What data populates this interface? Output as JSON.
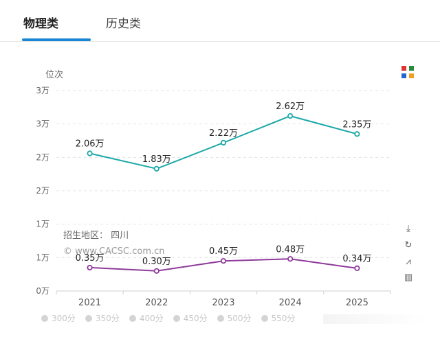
{
  "tabs": [
    {
      "label": "物理类",
      "active": true
    },
    {
      "label": "历史类",
      "active": false
    }
  ],
  "watermark": {
    "region_label": "招生地区：  四川",
    "site": "© www.CACSC.com.cn"
  },
  "legend": [
    "300分",
    "350分",
    "400分",
    "450分",
    "500分",
    "550分"
  ],
  "chart_data": {
    "type": "line",
    "ylabel": "位次",
    "categories": [
      "2021",
      "2022",
      "2023",
      "2024",
      "2025"
    ],
    "y_ticks": [
      {
        "value": 0,
        "label": "0万"
      },
      {
        "value": 5000,
        "label": "1万"
      },
      {
        "value": 10000,
        "label": "1万"
      },
      {
        "value": 15000,
        "label": "2万"
      },
      {
        "value": 20000,
        "label": "2万"
      },
      {
        "value": 25000,
        "label": "3万"
      },
      {
        "value": 30000,
        "label": "3万"
      }
    ],
    "ylim": [
      0,
      30000
    ],
    "series": [
      {
        "name": "series-teal",
        "color": "#1ea8a8",
        "values": [
          20600,
          18300,
          22200,
          26200,
          23500
        ],
        "labels": [
          "2.06万",
          "1.83万",
          "2.22万",
          "2.62万",
          "2.35万"
        ]
      },
      {
        "name": "series-purple",
        "color": "#8e3a9a",
        "values": [
          3500,
          3000,
          4500,
          4800,
          3400
        ],
        "labels": [
          "0.35万",
          "0.30万",
          "0.45万",
          "0.48万",
          "0.34万"
        ]
      }
    ]
  }
}
